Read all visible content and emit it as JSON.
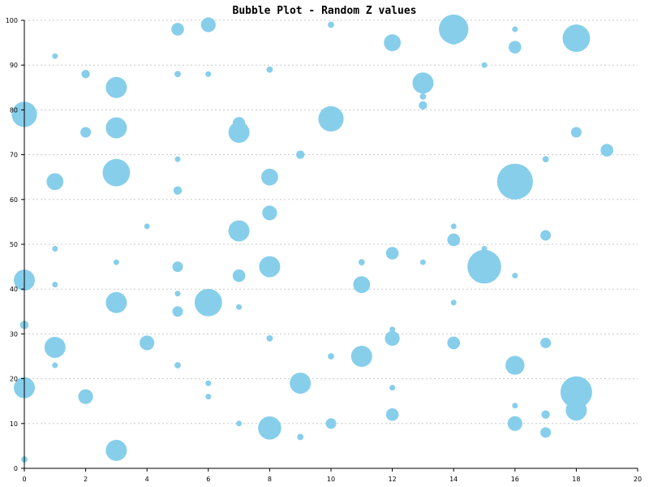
{
  "chart_data": {
    "type": "scatter",
    "title": "Bubble Plot - Random Z values",
    "xlabel": "",
    "ylabel": "",
    "xlim": [
      0,
      20
    ],
    "ylim": [
      0,
      100
    ],
    "x_ticks": [
      0,
      2,
      4,
      6,
      8,
      10,
      12,
      14,
      16,
      18,
      20
    ],
    "y_ticks": [
      0,
      10,
      20,
      30,
      40,
      50,
      60,
      70,
      80,
      90,
      100
    ],
    "grid": "horizontal-dotted",
    "bubble_color": "#87ceeb",
    "series": [
      {
        "points": [
          {
            "x": 0,
            "y": 2,
            "z": 3
          },
          {
            "x": 0,
            "y": 18,
            "z": 10
          },
          {
            "x": 0,
            "y": 32,
            "z": 4
          },
          {
            "x": 0,
            "y": 42,
            "z": 10
          },
          {
            "x": 0,
            "y": 79,
            "z": 12
          },
          {
            "x": 1,
            "y": 23,
            "z": 2
          },
          {
            "x": 1,
            "y": 27,
            "z": 10
          },
          {
            "x": 1,
            "y": 41,
            "z": 2
          },
          {
            "x": 1,
            "y": 49,
            "z": 1
          },
          {
            "x": 1,
            "y": 64,
            "z": 8
          },
          {
            "x": 1,
            "y": 92,
            "z": 1
          },
          {
            "x": 2,
            "y": 16,
            "z": 7
          },
          {
            "x": 2,
            "y": 75,
            "z": 5
          },
          {
            "x": 2,
            "y": 88,
            "z": 4
          },
          {
            "x": 3,
            "y": 4,
            "z": 10
          },
          {
            "x": 3,
            "y": 37,
            "z": 10
          },
          {
            "x": 3,
            "y": 46,
            "z": 2
          },
          {
            "x": 3,
            "y": 66,
            "z": 13
          },
          {
            "x": 3,
            "y": 76,
            "z": 10
          },
          {
            "x": 3,
            "y": 85,
            "z": 10
          },
          {
            "x": 4,
            "y": 28,
            "z": 7
          },
          {
            "x": 4,
            "y": 54,
            "z": 2
          },
          {
            "x": 5,
            "y": 23,
            "z": 3
          },
          {
            "x": 5,
            "y": 35,
            "z": 5
          },
          {
            "x": 5,
            "y": 39,
            "z": 2
          },
          {
            "x": 5,
            "y": 45,
            "z": 5
          },
          {
            "x": 5,
            "y": 62,
            "z": 4
          },
          {
            "x": 5,
            "y": 69,
            "z": 1
          },
          {
            "x": 5,
            "y": 88,
            "z": 3
          },
          {
            "x": 5,
            "y": 98,
            "z": 6
          },
          {
            "x": 6,
            "y": 16,
            "z": 2
          },
          {
            "x": 6,
            "y": 19,
            "z": 1
          },
          {
            "x": 6,
            "y": 37,
            "z": 13
          },
          {
            "x": 6,
            "y": 88,
            "z": 1
          },
          {
            "x": 6,
            "y": 99,
            "z": 7
          },
          {
            "x": 7,
            "y": 10,
            "z": 1
          },
          {
            "x": 7,
            "y": 36,
            "z": 2
          },
          {
            "x": 7,
            "y": 43,
            "z": 6
          },
          {
            "x": 7,
            "y": 53,
            "z": 10
          },
          {
            "x": 7,
            "y": 75,
            "z": 10
          },
          {
            "x": 7,
            "y": 77,
            "z": 6
          },
          {
            "x": 8,
            "y": 9,
            "z": 11
          },
          {
            "x": 8,
            "y": 29,
            "z": 3
          },
          {
            "x": 8,
            "y": 45,
            "z": 10
          },
          {
            "x": 8,
            "y": 57,
            "z": 7
          },
          {
            "x": 8,
            "y": 65,
            "z": 8
          },
          {
            "x": 8,
            "y": 89,
            "z": 3
          },
          {
            "x": 9,
            "y": 7,
            "z": 3
          },
          {
            "x": 9,
            "y": 19,
            "z": 10
          },
          {
            "x": 9,
            "y": 70,
            "z": 4
          },
          {
            "x": 10,
            "y": 10,
            "z": 5
          },
          {
            "x": 10,
            "y": 25,
            "z": 3
          },
          {
            "x": 10,
            "y": 78,
            "z": 12
          },
          {
            "x": 10,
            "y": 99,
            "z": 3
          },
          {
            "x": 11,
            "y": 25,
            "z": 10
          },
          {
            "x": 11,
            "y": 41,
            "z": 8
          },
          {
            "x": 11,
            "y": 46,
            "z": 3
          },
          {
            "x": 12,
            "y": 12,
            "z": 6
          },
          {
            "x": 12,
            "y": 18,
            "z": 1
          },
          {
            "x": 12,
            "y": 29,
            "z": 7
          },
          {
            "x": 12,
            "y": 31,
            "z": 2
          },
          {
            "x": 12,
            "y": 48,
            "z": 6
          },
          {
            "x": 12,
            "y": 95,
            "z": 8
          },
          {
            "x": 13,
            "y": 46,
            "z": 1
          },
          {
            "x": 13,
            "y": 81,
            "z": 4
          },
          {
            "x": 13,
            "y": 83,
            "z": 3
          },
          {
            "x": 13,
            "y": 86,
            "z": 10
          },
          {
            "x": 14,
            "y": 28,
            "z": 6
          },
          {
            "x": 14,
            "y": 37,
            "z": 1
          },
          {
            "x": 14,
            "y": 51,
            "z": 6
          },
          {
            "x": 14,
            "y": 54,
            "z": 1
          },
          {
            "x": 14,
            "y": 96,
            "z": 6
          },
          {
            "x": 14,
            "y": 98,
            "z": 14
          },
          {
            "x": 15,
            "y": 45,
            "z": 16
          },
          {
            "x": 15,
            "y": 49,
            "z": 1
          },
          {
            "x": 15,
            "y": 90,
            "z": 2
          },
          {
            "x": 16,
            "y": 10,
            "z": 7
          },
          {
            "x": 16,
            "y": 14,
            "z": 1
          },
          {
            "x": 16,
            "y": 23,
            "z": 9
          },
          {
            "x": 16,
            "y": 43,
            "z": 2
          },
          {
            "x": 16,
            "y": 64,
            "z": 17
          },
          {
            "x": 16,
            "y": 94,
            "z": 6
          },
          {
            "x": 16,
            "y": 98,
            "z": 1
          },
          {
            "x": 17,
            "y": 8,
            "z": 5
          },
          {
            "x": 17,
            "y": 12,
            "z": 4
          },
          {
            "x": 17,
            "y": 28,
            "z": 5
          },
          {
            "x": 17,
            "y": 52,
            "z": 5
          },
          {
            "x": 17,
            "y": 69,
            "z": 3
          },
          {
            "x": 18,
            "y": 13,
            "z": 10
          },
          {
            "x": 18,
            "y": 17,
            "z": 15
          },
          {
            "x": 18,
            "y": 75,
            "z": 5
          },
          {
            "x": 18,
            "y": 96,
            "z": 13
          },
          {
            "x": 19,
            "y": 71,
            "z": 6
          }
        ]
      }
    ]
  }
}
